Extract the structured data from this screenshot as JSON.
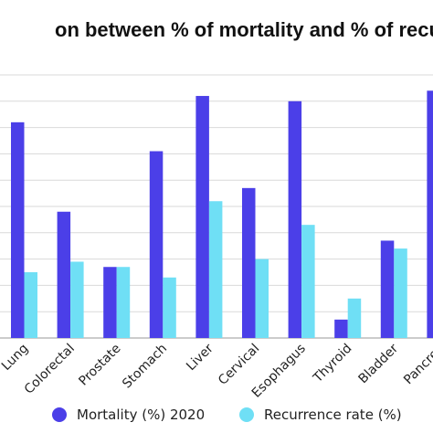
{
  "chart_data": {
    "type": "bar",
    "title": "on between % of mortality and % of recu",
    "categories": [
      "Lung",
      "Colorectal",
      "Prostate",
      "Stomach",
      "Liver",
      "Cervical",
      "Esophagus",
      "Thyroid",
      "Bladder",
      "Pancrea"
    ],
    "series": [
      {
        "name": "Mortality (%) 2020",
        "color": "#4B3FE8",
        "values": [
          82,
          48,
          27,
          71,
          92,
          57,
          90,
          7,
          37,
          94
        ]
      },
      {
        "name": "Recurrence rate (%)",
        "color": "#6FDFF5",
        "values": [
          25,
          29,
          27,
          23,
          52,
          30,
          43,
          15,
          34,
          0
        ]
      }
    ],
    "ylim": [
      0,
      100
    ],
    "grid": true,
    "legend": "bottom"
  }
}
